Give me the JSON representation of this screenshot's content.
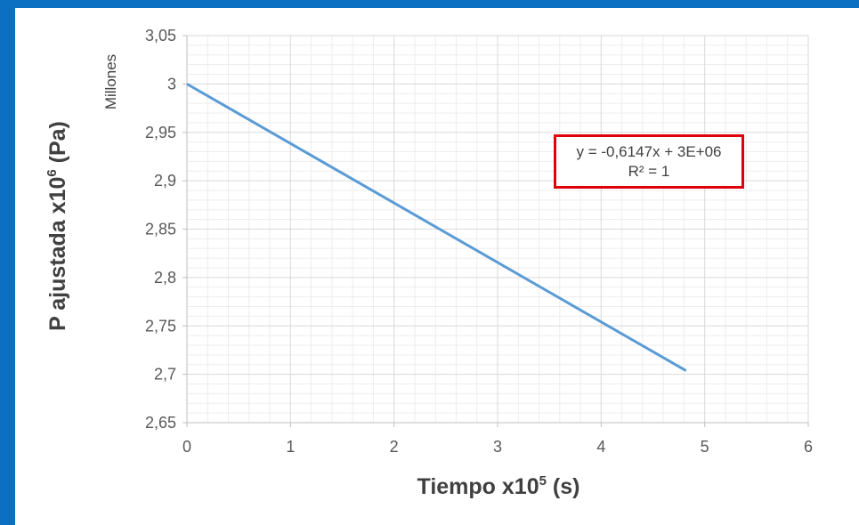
{
  "chart_data": {
    "type": "line",
    "xlabel": "Tiempo x10",
    "xlabel_sup": "5",
    "xlabel_tail": " (s)",
    "ylabel": "P ajustada x10",
    "ylabel_sup": "6",
    "ylabel_tail": " (Pa)",
    "units_label": "Millones",
    "xlim": [
      0,
      6
    ],
    "ylim": [
      2.65,
      3.05
    ],
    "x_ticks": [
      "0",
      "1",
      "2",
      "3",
      "4",
      "5",
      "6"
    ],
    "y_ticks": [
      "3,05",
      "3",
      "2,95",
      "2,9",
      "2,85",
      "2,8",
      "2,75",
      "2,7",
      "2,65"
    ],
    "grid": true,
    "series": [
      {
        "x": [
          0,
          4.82
        ],
        "y": [
          3.0,
          2.7037
        ],
        "color": "#5b9bd5"
      }
    ],
    "trendline_equation": "y = -0,6147x + 3E+06",
    "r_squared": "R² = 1",
    "equation_box_color": "#e0000a"
  },
  "frame_color": "#0b70c1"
}
